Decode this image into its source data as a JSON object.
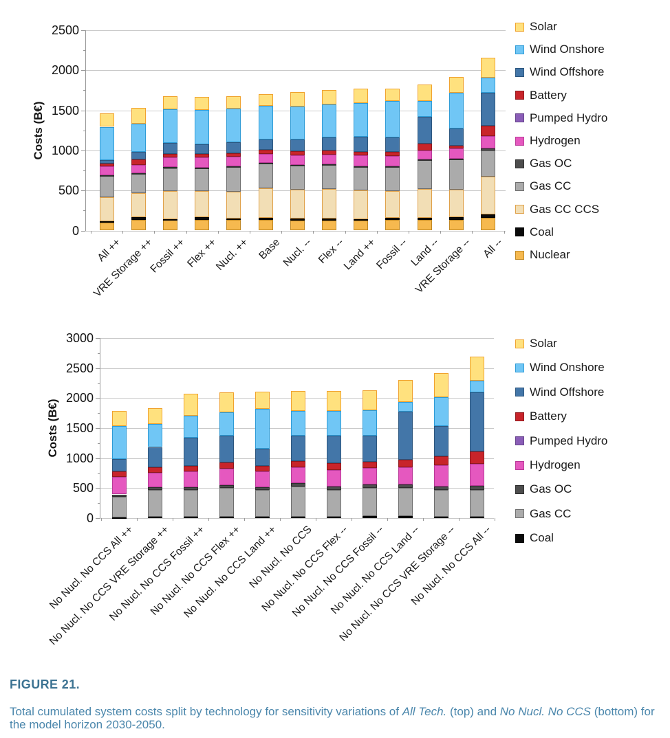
{
  "page": {
    "background": "#FFFFFF"
  },
  "colors": {
    "caption_label": "#3C7392",
    "caption_body": "#4B87AC",
    "gridline": "#C9C9C9",
    "axis": "#9A9A9A"
  },
  "caption": {
    "label": "FIGURE 21.",
    "parts": [
      {
        "t": "Total cumulated system costs split by technology for sensitivity variations of ",
        "italic": false
      },
      {
        "t": "All Tech.",
        "italic": true
      },
      {
        "t": " (top) and ",
        "italic": false
      },
      {
        "t": "No Nucl. No CCS",
        "italic": true
      },
      {
        "t": " (bottom) for the model horizon 2030-2050.",
        "italic": false
      }
    ]
  },
  "chart_data": [
    {
      "type": "bar",
      "stacked": true,
      "title": "",
      "xlabel": "",
      "ylabel": "Costs (B€)",
      "ylim": [
        0,
        2500
      ],
      "ytick_step": 500,
      "grid": true,
      "legend_position": "right",
      "categories": [
        "All ++",
        "VRE Storage ++",
        "Fossil ++",
        "Flex ++",
        "Nucl. ++",
        "Base",
        "Nucl. --",
        "Flex --",
        "Land ++",
        "Fossil --",
        "Land --",
        "VRE Storage --",
        "All --"
      ],
      "series": [
        {
          "name": "Nuclear",
          "color": "#F6B94F",
          "border": "#BF8722",
          "values": [
            95,
            130,
            130,
            130,
            130,
            135,
            125,
            125,
            125,
            130,
            135,
            135,
            160
          ]
        },
        {
          "name": "Coal",
          "color": "#0A0A0A",
          "border": "#000000",
          "values": [
            25,
            35,
            15,
            35,
            20,
            25,
            25,
            25,
            20,
            30,
            25,
            30,
            40
          ]
        },
        {
          "name": "Gas CC CCS",
          "color": "#F2DEB5",
          "border": "#DFA048",
          "values": [
            295,
            305,
            345,
            330,
            335,
            365,
            360,
            370,
            355,
            335,
            355,
            345,
            470
          ]
        },
        {
          "name": "Gas CC",
          "color": "#ABABAB",
          "border": "#6E6E6E",
          "values": [
            265,
            240,
            290,
            280,
            305,
            310,
            300,
            300,
            295,
            295,
            360,
            380,
            325
          ]
        },
        {
          "name": "Gas OC",
          "color": "#4D4D4D",
          "border": "#2E2E2E",
          "values": [
            10,
            10,
            10,
            10,
            10,
            10,
            10,
            10,
            10,
            10,
            10,
            10,
            30
          ]
        },
        {
          "name": "Hydrogen",
          "color": "#E558BF",
          "border": "#B93A98",
          "values": [
            110,
            95,
            120,
            130,
            125,
            115,
            120,
            120,
            130,
            130,
            115,
            125,
            155
          ]
        },
        {
          "name": "Pumped Hydro",
          "color": "#8A5DB7",
          "border": "#64418A",
          "values": [
            0,
            0,
            0,
            0,
            0,
            0,
            0,
            0,
            0,
            0,
            0,
            0,
            0
          ]
        },
        {
          "name": "Battery",
          "color": "#C8242A",
          "border": "#8F191D",
          "values": [
            40,
            75,
            50,
            45,
            40,
            50,
            50,
            50,
            50,
            55,
            85,
            30,
            130
          ]
        },
        {
          "name": "Wind Offshore",
          "color": "#4376A8",
          "border": "#2C567E",
          "values": [
            35,
            90,
            135,
            115,
            140,
            130,
            150,
            160,
            185,
            180,
            335,
            215,
            410
          ]
        },
        {
          "name": "Wind Onshore",
          "color": "#70C6F5",
          "border": "#2E9BD6",
          "values": [
            420,
            355,
            415,
            430,
            415,
            415,
            410,
            410,
            425,
            450,
            195,
            450,
            185
          ]
        },
        {
          "name": "Solar",
          "color": "#FFE17E",
          "border": "#F0A22E",
          "values": [
            170,
            195,
            165,
            165,
            160,
            150,
            180,
            180,
            175,
            155,
            205,
            195,
            255
          ]
        }
      ],
      "legend": [
        "Solar",
        "Wind Onshore",
        "Wind Offshore",
        "Battery",
        "Pumped Hydro",
        "Hydrogen",
        "Gas OC",
        "Gas CC",
        "Gas CC CCS",
        "Coal",
        "Nuclear"
      ]
    },
    {
      "type": "bar",
      "stacked": true,
      "title": "",
      "xlabel": "",
      "ylabel": "Costs (B€)",
      "ylim": [
        0,
        3000
      ],
      "ytick_step": 500,
      "grid": true,
      "legend_position": "right",
      "categories": [
        "No Nucl. No CCS All ++",
        "No Nucl. No CCS VRE Storage ++",
        "No Nucl. No CCS Fossil ++",
        "No Nucl. No CCS Flex ++",
        "No Nucl. No CCS Land ++",
        "No Nucl. No CCS",
        "No Nucl. No CCS Flex --",
        "No Nucl. No CCS Fossil --",
        "No Nucl. No CCS Land --",
        "No Nucl. No CCS VRE Storage --",
        "No Nucl. No CCS All --"
      ],
      "series": [
        {
          "name": "Coal",
          "color": "#0A0A0A",
          "border": "#000000",
          "values": [
            15,
            25,
            20,
            25,
            25,
            20,
            20,
            30,
            30,
            25,
            20
          ]
        },
        {
          "name": "Gas CC",
          "color": "#ABABAB",
          "border": "#6E6E6E",
          "values": [
            335,
            440,
            445,
            480,
            440,
            510,
            455,
            475,
            475,
            445,
            445
          ]
        },
        {
          "name": "Gas OC",
          "color": "#4D4D4D",
          "border": "#2E2E2E",
          "values": [
            45,
            45,
            50,
            50,
            45,
            55,
            55,
            60,
            60,
            55,
            70
          ]
        },
        {
          "name": "Hydrogen",
          "color": "#E558BF",
          "border": "#B93A98",
          "values": [
            295,
            250,
            265,
            270,
            265,
            265,
            270,
            270,
            280,
            360,
            375
          ]
        },
        {
          "name": "Pumped Hydro",
          "color": "#8A5DB7",
          "border": "#64418A",
          "values": [
            0,
            0,
            0,
            0,
            0,
            0,
            0,
            0,
            0,
            0,
            0
          ]
        },
        {
          "name": "Battery",
          "color": "#C8242A",
          "border": "#8F191D",
          "values": [
            85,
            85,
            90,
            100,
            100,
            100,
            115,
            105,
            125,
            150,
            200
          ]
        },
        {
          "name": "Wind Offshore",
          "color": "#4376A8",
          "border": "#2C567E",
          "values": [
            205,
            340,
            470,
            445,
            280,
            420,
            455,
            435,
            800,
            495,
            985
          ]
        },
        {
          "name": "Wind Onshore",
          "color": "#70C6F5",
          "border": "#2E9BD6",
          "values": [
            560,
            385,
            370,
            395,
            660,
            415,
            420,
            420,
            170,
            480,
            190
          ]
        },
        {
          "name": "Solar",
          "color": "#FFE17E",
          "border": "#F0A22E",
          "values": [
            250,
            265,
            360,
            330,
            290,
            330,
            325,
            335,
            360,
            405,
            410
          ]
        }
      ],
      "legend": [
        "Solar",
        "Wind Onshore",
        "Wind Offshore",
        "Battery",
        "Pumped Hydro",
        "Hydrogen",
        "Gas OC",
        "Gas CC",
        "Coal"
      ]
    }
  ]
}
